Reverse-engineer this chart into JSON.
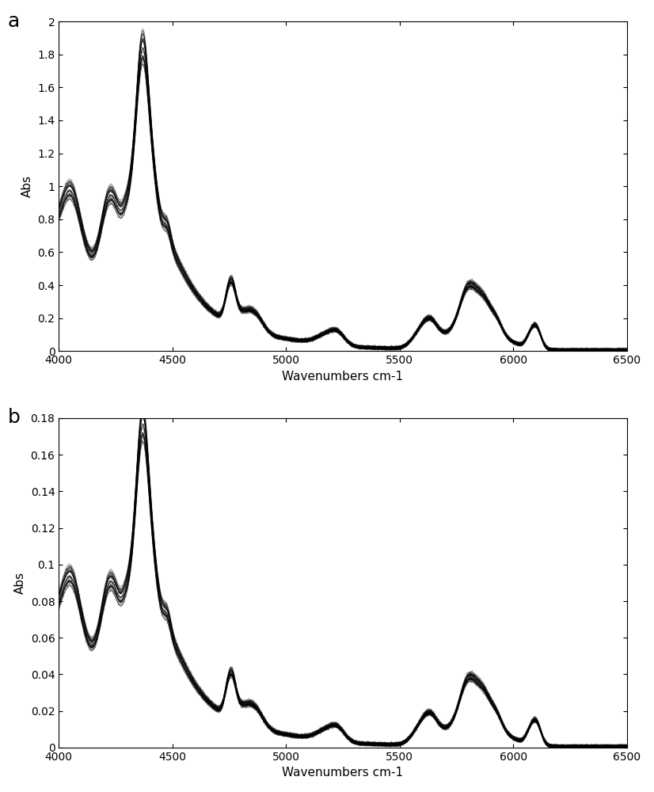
{
  "panel_a_label": "a",
  "panel_b_label": "b",
  "xlabel": "Wavenumbers cm-1",
  "ylabel": "Abs",
  "panel_a_ylim": [
    0,
    2.0
  ],
  "panel_b_ylim": [
    0,
    0.18
  ],
  "xlim": [
    4000,
    6500
  ],
  "panel_a_yticks": [
    0,
    0.2,
    0.4,
    0.6,
    0.8,
    1.0,
    1.2,
    1.4,
    1.6,
    1.8,
    2.0
  ],
  "panel_b_yticks": [
    0,
    0.02,
    0.04,
    0.06,
    0.08,
    0.1,
    0.12,
    0.14,
    0.16,
    0.18
  ],
  "xticks": [
    4000,
    4500,
    5000,
    5500,
    6000,
    6500
  ],
  "line_color": "#000000",
  "line_alpha": 0.45,
  "line_width": 0.5,
  "n_spectra": 35,
  "background_color": "#ffffff",
  "fig_width": 8.26,
  "fig_height": 10.0,
  "dpi": 100,
  "label_fontsize": 18,
  "tick_fontsize": 10,
  "axis_label_fontsize": 11,
  "scale_b": 0.096
}
